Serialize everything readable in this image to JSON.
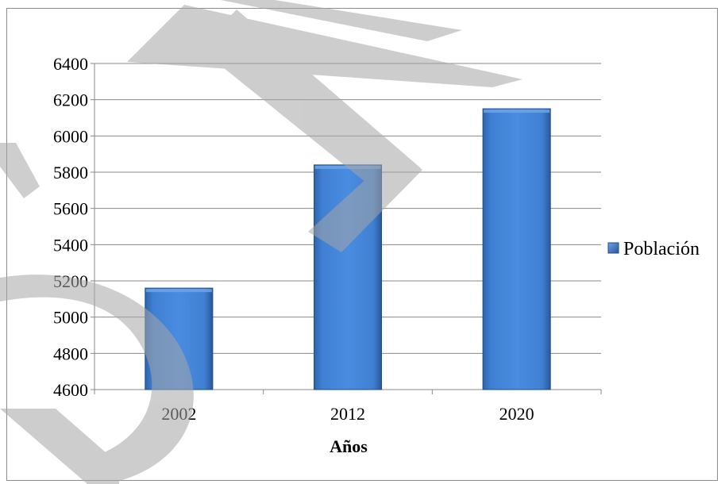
{
  "chart_data": {
    "type": "bar",
    "title": "",
    "xlabel": "Años",
    "ylabel": "",
    "categories": [
      "2002",
      "2012",
      "2020"
    ],
    "series": [
      {
        "name": "Población",
        "values": [
          5160,
          5840,
          6150
        ]
      }
    ],
    "ylim": [
      4600,
      6400
    ],
    "yticks": [
      "4600",
      "4800",
      "5000",
      "5200",
      "5400",
      "5600",
      "5800",
      "6000",
      "6200",
      "6400"
    ],
    "grid": true,
    "legend": "right",
    "colors": {
      "bar": "#3a78c9",
      "bar_edge": "#1f4f8e",
      "grid": "#8a8a8a",
      "watermark": "#a6a6a6"
    }
  }
}
